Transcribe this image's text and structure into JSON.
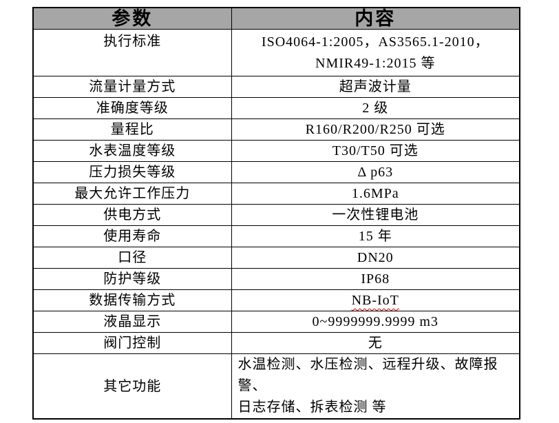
{
  "colors": {
    "header_background": "#a6a6a6",
    "table_border": "#000000",
    "text": "#000000",
    "spellcheck_underline": "#cc0000"
  },
  "table": {
    "headers": [
      "参数",
      "内容"
    ],
    "rows": [
      {
        "param": "执行标准",
        "content": [
          "ISO4064-1:2005，AS3565.1-2010，",
          "NMIR49-1:2015 等"
        ]
      },
      {
        "param": "流量计量方式",
        "content": "超声波计量"
      },
      {
        "param": "准确度等级",
        "content": "2 级"
      },
      {
        "param": "量程比",
        "content": "R160/R200/R250 可选"
      },
      {
        "param": "水表温度等级",
        "content": "T30/T50 可选"
      },
      {
        "param": "压力损失等级",
        "content": "Δ p63"
      },
      {
        "param": "最大允许工作压力",
        "content": "1.6MPa"
      },
      {
        "param": "供电方式",
        "content": "一次性锂电池"
      },
      {
        "param": "使用寿命",
        "content": "15 年"
      },
      {
        "param": "口径",
        "content": "DN20"
      },
      {
        "param": "防护等级",
        "content": "IP68"
      },
      {
        "param": "数据传输方式",
        "content": "NB-IoT"
      },
      {
        "param": "液晶显示",
        "content": "0~9999999.9999 m3"
      },
      {
        "param": "阀门控制",
        "content": "无"
      },
      {
        "param": "其它功能",
        "content": [
          "水温检测、水压检测、远程升级、故障报警、",
          "日志存储、拆表检测 等"
        ]
      }
    ]
  }
}
